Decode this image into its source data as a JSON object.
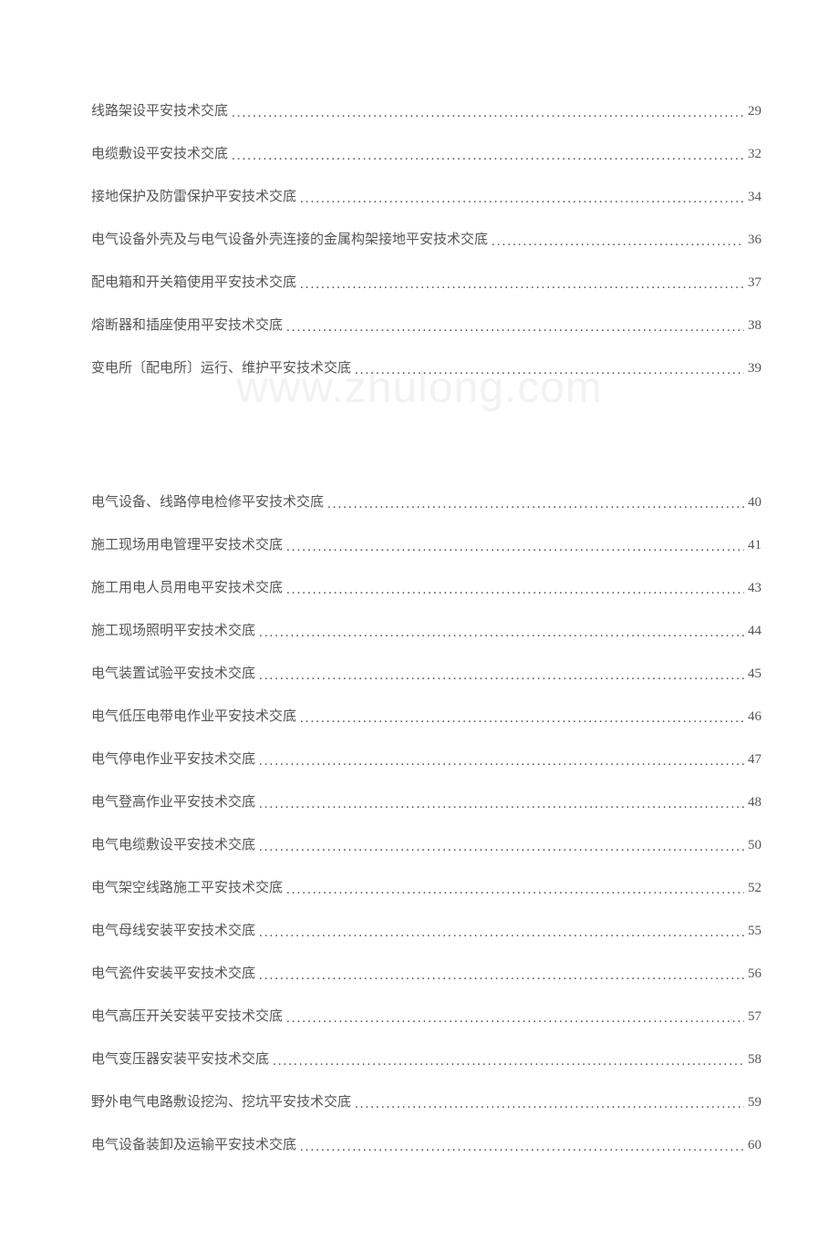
{
  "watermark_text": "www.zhulong.com",
  "text_color": "#555555",
  "watermark_color": "#f2f2f2",
  "background_color": "#ffffff",
  "font_size": 15,
  "toc_section_1": [
    {
      "title": "线路架设平安技术交底",
      "page": "29"
    },
    {
      "title": "电缆敷设平安技术交底",
      "page": "32"
    },
    {
      "title": "接地保护及防雷保护平安技术交底",
      "page": "34"
    },
    {
      "title": "电气设备外壳及与电气设备外壳连接的金属构架接地平安技术交底",
      "page": "36"
    },
    {
      "title": "配电箱和开关箱使用平安技术交底",
      "page": "37"
    },
    {
      "title": "熔断器和插座使用平安技术交底",
      "page": "38"
    },
    {
      "title": "变电所〔配电所〕运行、维护平安技术交底",
      "page": "39"
    }
  ],
  "toc_section_2": [
    {
      "title": "电气设备、线路停电检修平安技术交底",
      "page": "40"
    },
    {
      "title": "施工现场用电管理平安技术交底",
      "page": "41"
    },
    {
      "title": "施工用电人员用电平安技术交底",
      "page": "43"
    },
    {
      "title": "施工现场照明平安技术交底",
      "page": "44"
    },
    {
      "title": "电气装置试验平安技术交底",
      "page": "45"
    },
    {
      "title": "电气低压电带电作业平安技术交底",
      "page": "46"
    },
    {
      "title": "电气停电作业平安技术交底",
      "page": "47"
    },
    {
      "title": "电气登高作业平安技术交底",
      "page": "48"
    },
    {
      "title": "电气电缆敷设平安技术交底",
      "page": "50"
    },
    {
      "title": "电气架空线路施工平安技术交底",
      "page": "52"
    },
    {
      "title": "电气母线安装平安技术交底",
      "page": "55"
    },
    {
      "title": "电气瓷件安装平安技术交底",
      "page": "56"
    },
    {
      "title": "电气高压开关安装平安技术交底",
      "page": "57"
    },
    {
      "title": "电气变压器安装平安技术交底",
      "page": "58"
    },
    {
      "title": "野外电气电路敷设挖沟、挖坑平安技术交底",
      "page": "59"
    },
    {
      "title": "电气设备装卸及运输平安技术交底",
      "page": "60"
    }
  ]
}
